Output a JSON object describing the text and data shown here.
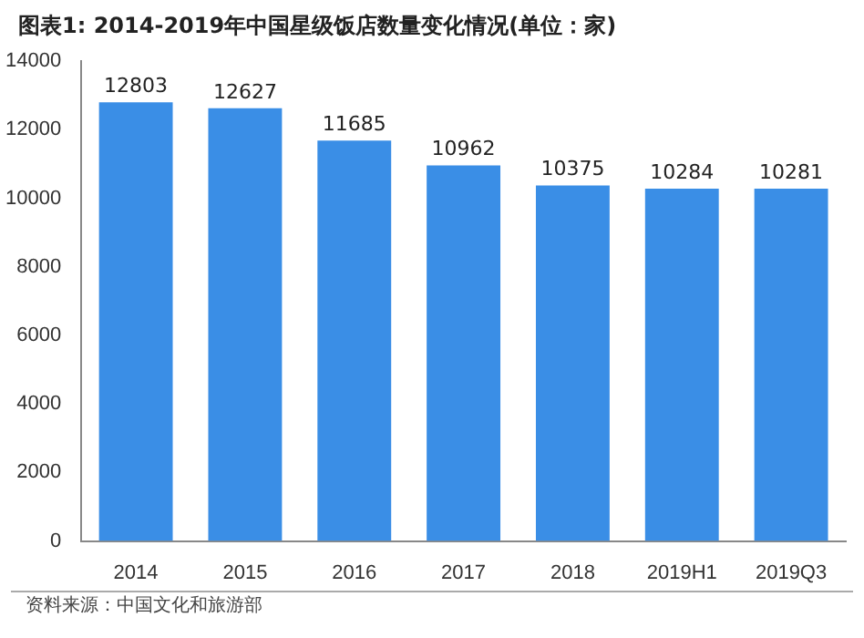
{
  "chart_data": {
    "type": "bar",
    "title": "图表1: 2014-2019年中国星级饭店数量变化情况(单位：家)",
    "categories": [
      "2014",
      "2015",
      "2016",
      "2017",
      "2018",
      "2019H1",
      "2019Q3"
    ],
    "values": [
      12803,
      12627,
      11685,
      10962,
      10375,
      10284,
      10281
    ],
    "color": "#3a8ee6",
    "ylim": [
      0,
      14000
    ],
    "yticks": [
      0,
      2000,
      4000,
      6000,
      8000,
      10000,
      12000,
      14000
    ],
    "data_labels": true,
    "annotations": [
      "资料来源：中国文化和旅游部"
    ]
  }
}
